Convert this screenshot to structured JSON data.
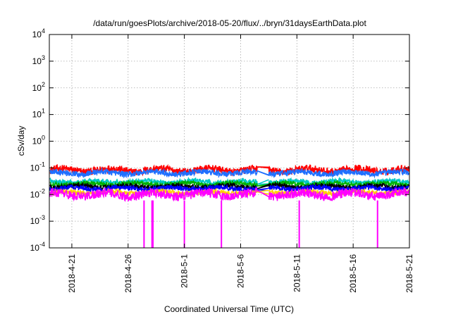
{
  "chart_data": {
    "type": "line",
    "title": "/data/run/goesPlots/archive/2018-05-20/flux/../bryn/31daysEarthData.plot",
    "xlabel": "Coordinated Universal Time (UTC)",
    "ylabel": "cSv/day",
    "y_scale": "log",
    "ylim": [
      0.0001,
      10000
    ],
    "xlim": [
      "2018-04-19",
      "2018-05-21"
    ],
    "grid": true,
    "y_ticks": [
      {
        "value": 0.0001,
        "base": "10",
        "exp": "-4"
      },
      {
        "value": 0.001,
        "base": "10",
        "exp": "-3"
      },
      {
        "value": 0.01,
        "base": "10",
        "exp": "-2"
      },
      {
        "value": 0.1,
        "base": "10",
        "exp": "-1"
      },
      {
        "value": 1,
        "base": "10",
        "exp": "0"
      },
      {
        "value": 10,
        "base": "10",
        "exp": "1"
      },
      {
        "value": 100,
        "base": "10",
        "exp": "2"
      },
      {
        "value": 1000,
        "base": "10",
        "exp": "3"
      },
      {
        "value": 10000,
        "base": "10",
        "exp": "4"
      }
    ],
    "x_ticks": [
      {
        "value": "2018-04-21",
        "label": "2018-4-21"
      },
      {
        "value": "2018-04-26",
        "label": "2018-4-26"
      },
      {
        "value": "2018-05-01",
        "label": "2018-5-1"
      },
      {
        "value": "2018-05-06",
        "label": "2018-5-6"
      },
      {
        "value": "2018-05-11",
        "label": "2018-5-11"
      },
      {
        "value": "2018-05-16",
        "label": "2018-5-16"
      },
      {
        "value": "2018-05-21",
        "label": "2018-5-21"
      }
    ],
    "data_gap": {
      "start": "2018-05-07T12:00",
      "end": "2018-05-08T12:00"
    },
    "series": [
      {
        "color": "#ff0000",
        "typical": 0.082,
        "range": [
          0.055,
          0.16
        ]
      },
      {
        "color": "#1f6fff",
        "typical": 0.065,
        "range": [
          0.04,
          0.09
        ]
      },
      {
        "color": "#00c8c8",
        "typical": 0.03,
        "range": [
          0.022,
          0.045
        ]
      },
      {
        "color": "#00b000",
        "typical": 0.025,
        "range": [
          0.018,
          0.035
        ]
      },
      {
        "color": "#000000",
        "typical": 0.02,
        "range": [
          0.014,
          0.028
        ]
      },
      {
        "color": "#0000ff",
        "typical": 0.017,
        "range": [
          0.012,
          0.024
        ]
      },
      {
        "color": "#ffd000",
        "typical": 0.012,
        "range": [
          0.009,
          0.017
        ]
      },
      {
        "color": "#ff00ff",
        "typical": 0.01,
        "range": [
          0.005,
          0.018
        ]
      }
    ],
    "dropouts": [
      {
        "date": "2018-04-27T10:00",
        "y_min": 0.0001
      },
      {
        "date": "2018-04-28T03:00",
        "y_min": 0.0001
      },
      {
        "date": "2018-04-28T05:00",
        "y_min": 0.0001
      },
      {
        "date": "2018-05-01T00:00",
        "y_min": 0.0001
      },
      {
        "date": "2018-05-04T07:00",
        "y_min": 0.0001
      },
      {
        "date": "2018-05-11T05:00",
        "y_min": 0.0001
      },
      {
        "date": "2018-05-18T04:00",
        "y_min": 0.0001
      }
    ]
  }
}
